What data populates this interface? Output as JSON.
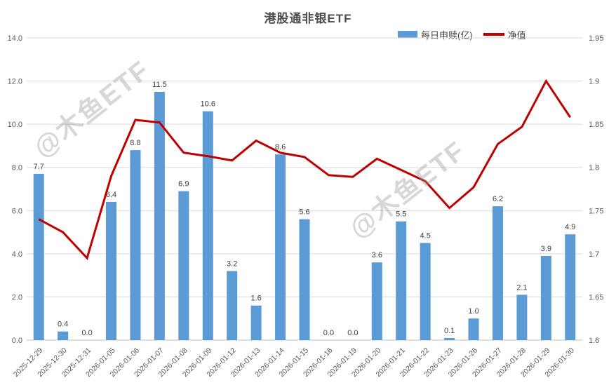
{
  "title": "港股通非银ETF",
  "watermark": {
    "text": "@木鱼ETF"
  },
  "legend": [
    {
      "label": "每日申赎(亿)",
      "type": "bar",
      "color": "#5B9BD5"
    },
    {
      "label": "净值",
      "type": "line",
      "color": "#C00000"
    }
  ],
  "colors": {
    "bar": "#5B9BD5",
    "line": "#C00000",
    "grid": "#D9D9D9",
    "axis_line": "#BFBFBF",
    "axis_text": "#595959",
    "label_text": "#404040",
    "watermark": "rgba(150,150,150,0.38)"
  },
  "chart_data": {
    "type": "combo",
    "title": "港股通非银ETF",
    "grid": true,
    "legend_position": "top-right",
    "categories": [
      "2025-12-29",
      "2025-12-30",
      "2025-12-31",
      "2026-01-05",
      "2026-01-06",
      "2026-01-07",
      "2026-01-08",
      "2026-01-09",
      "2026-01-12",
      "2026-01-13",
      "2026-01-14",
      "2026-01-15",
      "2026-01-16",
      "2026-01-19",
      "2026-01-20",
      "2026-01-21",
      "2026-01-22",
      "2026-01-23",
      "2026-01-26",
      "2026-01-27",
      "2026-01-28",
      "2026-01-29",
      "2026-01-30"
    ],
    "series": [
      {
        "name": "每日申赎(亿)",
        "type": "bar",
        "axis": "left",
        "color": "#5B9BD5",
        "values": [
          7.7,
          0.4,
          0.0,
          6.4,
          8.8,
          11.5,
          6.9,
          10.6,
          3.2,
          1.6,
          8.6,
          5.6,
          0.0,
          0.0,
          3.6,
          5.5,
          4.5,
          0.1,
          1.0,
          6.2,
          2.1,
          3.9,
          4.9
        ]
      },
      {
        "name": "净值",
        "type": "line",
        "axis": "right",
        "color": "#C00000",
        "values": [
          1.74,
          1.725,
          1.695,
          1.79,
          1.855,
          1.852,
          1.817,
          1.813,
          1.808,
          1.831,
          1.817,
          1.812,
          1.791,
          1.789,
          1.81,
          1.797,
          1.784,
          1.753,
          1.777,
          1.827,
          1.847,
          1.9,
          1.858
        ]
      }
    ],
    "bar_labels": [
      "7.7",
      "0.4",
      "0.0",
      "6.4",
      "8.8",
      "11.5",
      "6.9",
      "10.6",
      "3.2",
      "1.6",
      "8.6",
      "5.6",
      "0.0",
      "0.0",
      "3.6",
      "5.5",
      "4.5",
      "0.1",
      "1.0",
      "6.2",
      "2.1",
      "3.9",
      "4.9"
    ],
    "left_axis": {
      "min": 0,
      "max": 14,
      "ticks": [
        "0.0",
        "2.0",
        "4.0",
        "6.0",
        "8.0",
        "10.0",
        "12.0",
        "14.0"
      ]
    },
    "right_axis": {
      "min": 1.6,
      "max": 1.95,
      "ticks": [
        "1.6",
        "1.65",
        "1.7",
        "1.75",
        "1.8",
        "1.85",
        "1.9",
        "1.95"
      ]
    }
  }
}
